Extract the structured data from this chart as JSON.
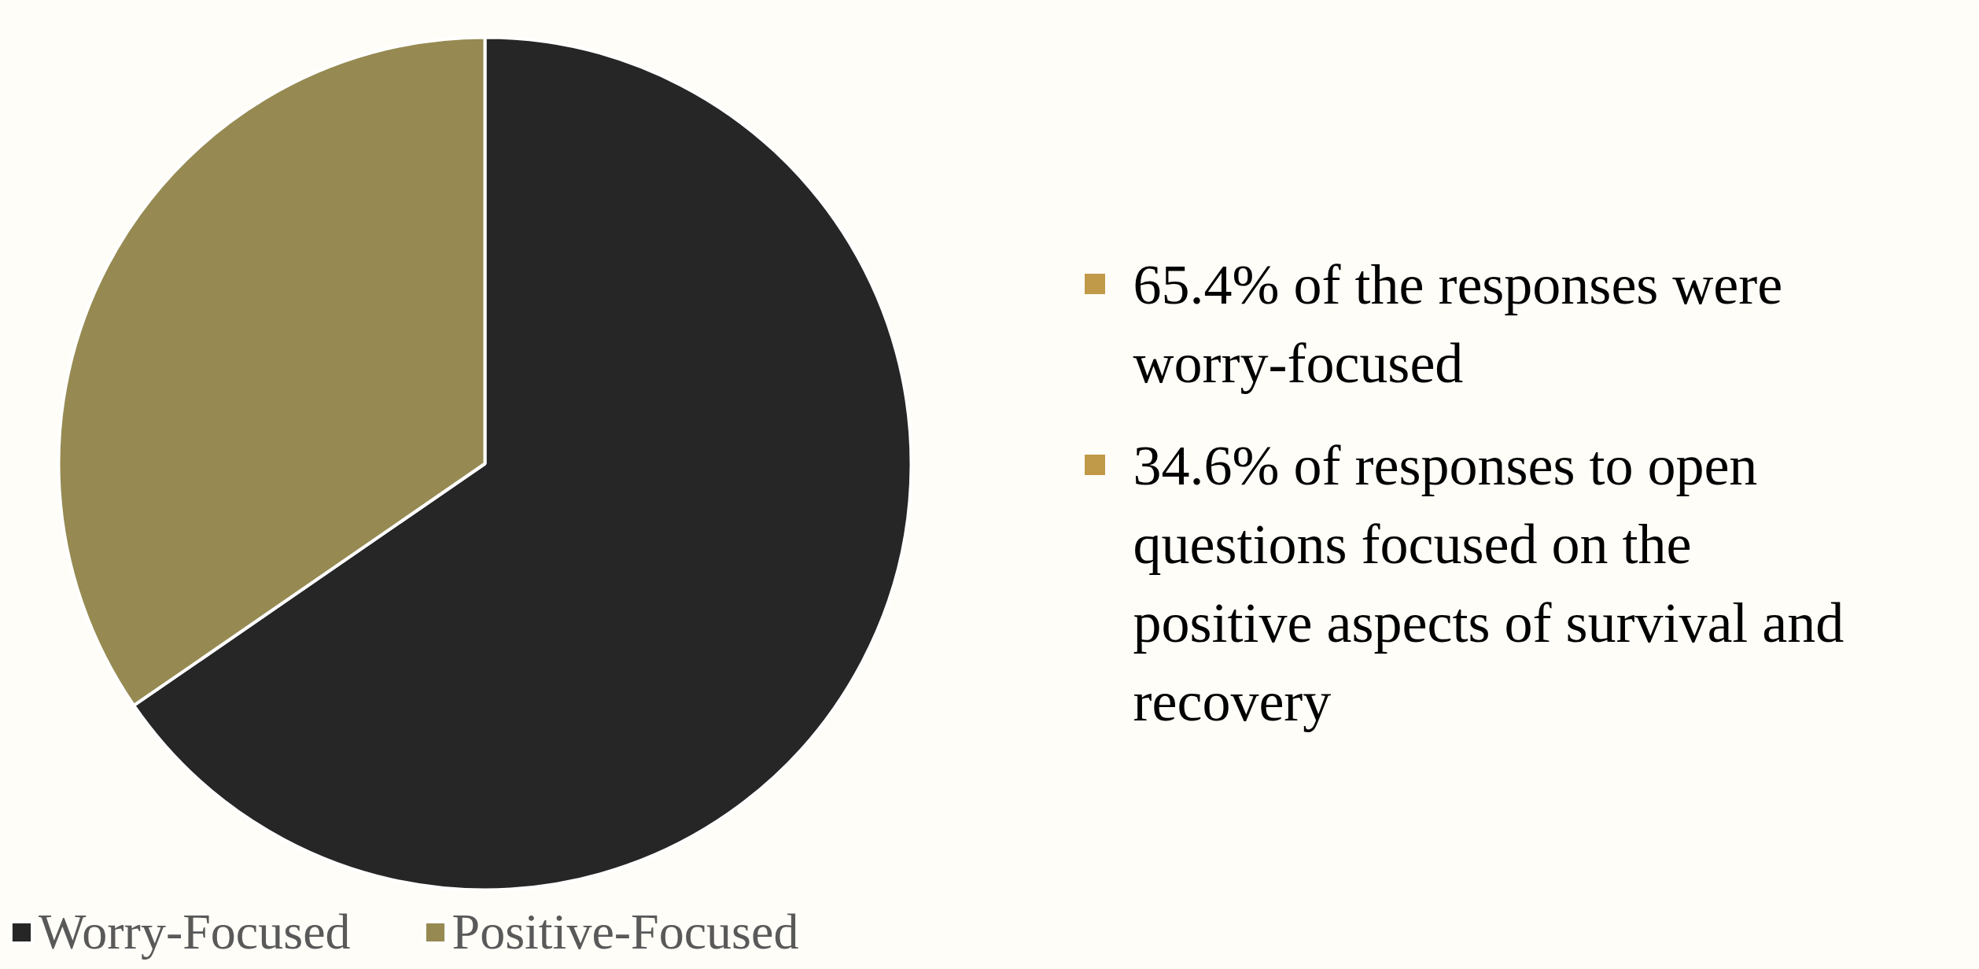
{
  "chart_data": {
    "type": "pie",
    "categories": [
      "Worry-Focused",
      "Positive-Focused"
    ],
    "values": [
      65.4,
      34.6
    ],
    "colors": [
      "#262626",
      "#968a52"
    ],
    "legend": "bottom left",
    "annotations": [
      "65.4% of the responses were worry-focused",
      "34.6% of responses to open questions focused on the positive aspects of survival and recovery"
    ]
  }
}
